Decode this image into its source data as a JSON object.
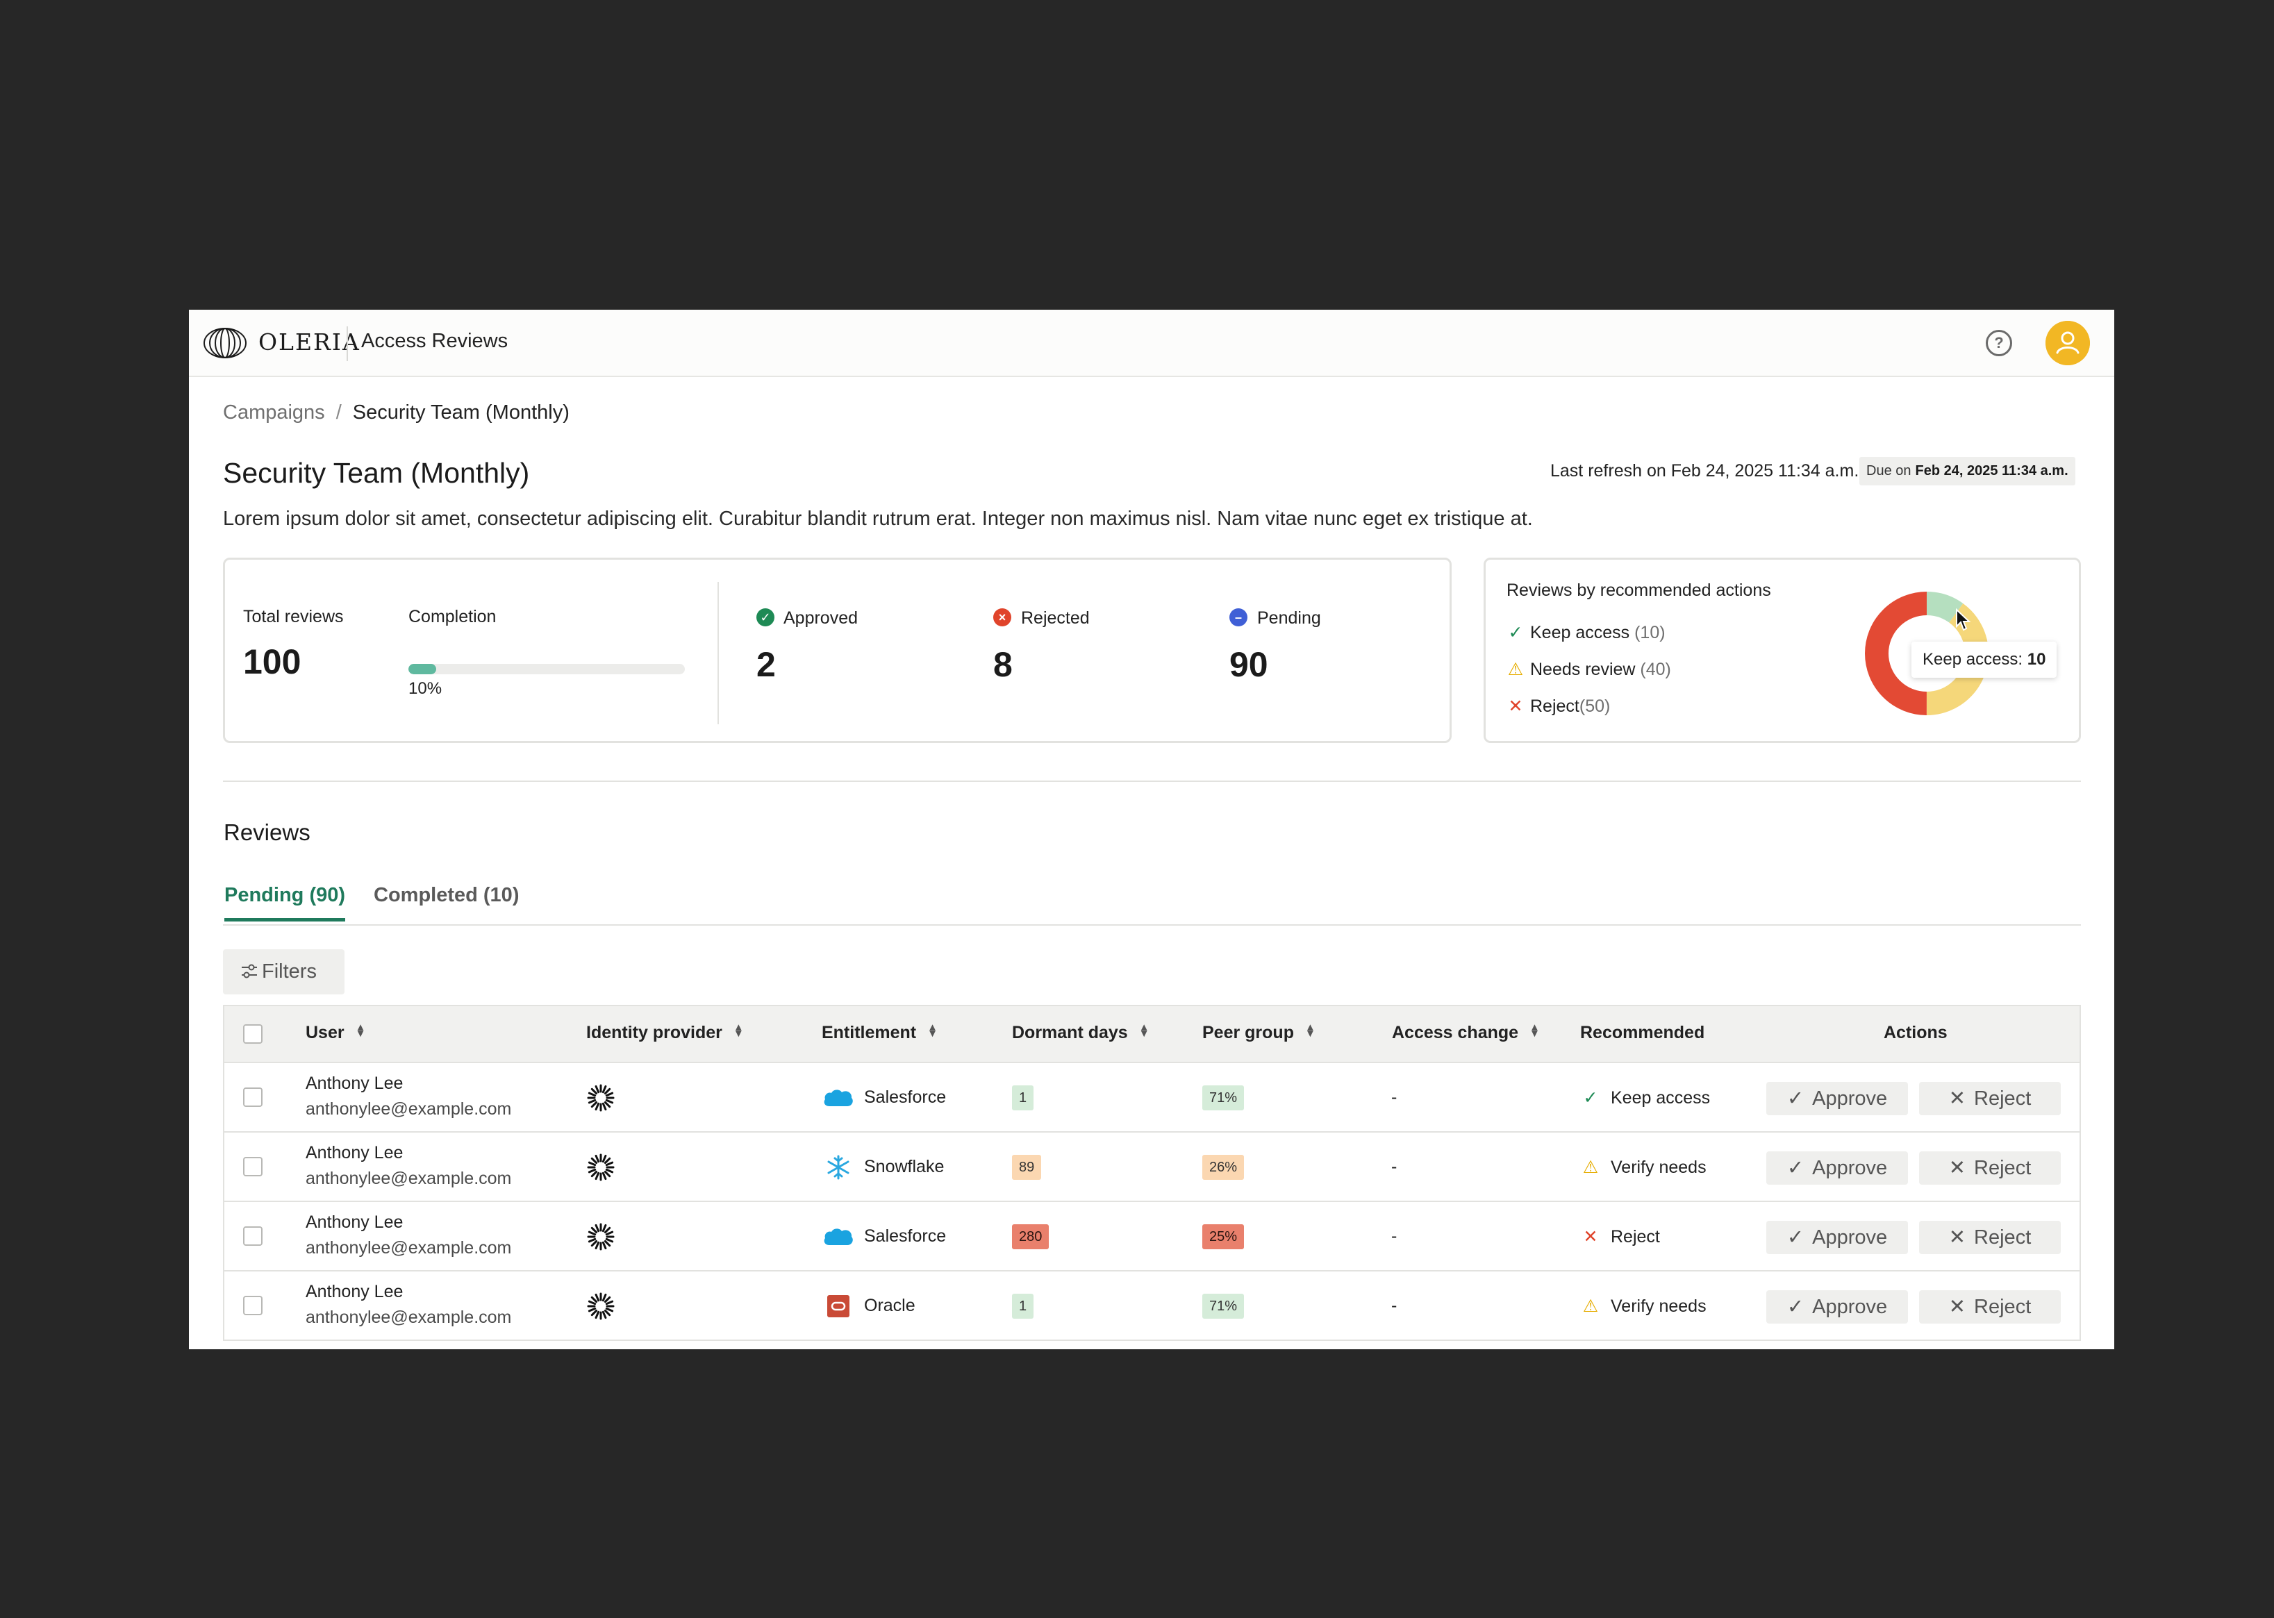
{
  "header": {
    "brand": "OLERIA",
    "app_name": "Access Reviews",
    "help_label": "?"
  },
  "breadcrumb": {
    "parent": "Campaigns",
    "separator": "/",
    "current": "Security Team (Monthly)"
  },
  "page": {
    "title": "Security Team (Monthly)",
    "last_refresh": "Last refresh on Feb 24, 2025 11:34 a.m.",
    "due_label": "Due on",
    "due_value": "Feb 24, 2025 11:34 a.m.",
    "description": "Lorem ipsum dolor sit amet, consectetur adipiscing elit. Curabitur blandit rutrum erat. Integer non maximus nisl. Nam vitae nunc eget ex tristique at."
  },
  "stats": {
    "total_label": "Total reviews",
    "total_value": "100",
    "completion_label": "Completion",
    "completion_fraction": 0.1,
    "completion_text": "10%",
    "approved_label": "Approved",
    "approved_value": "2",
    "rejected_label": "Rejected",
    "rejected_value": "8",
    "pending_label": "Pending",
    "pending_value": "90"
  },
  "recommendations": {
    "title": "Reviews by recommended actions",
    "items": [
      {
        "label": "Keep access",
        "count": "(10)",
        "icon": "check-icon",
        "color": "#1e8a55"
      },
      {
        "label": "Needs review",
        "count": "(40)",
        "icon": "warning-icon",
        "color": "#e6ad00"
      },
      {
        "label": "Reject",
        "count": "(50)",
        "icon": "x-icon",
        "color": "#e0442b"
      }
    ],
    "tooltip_label": "Keep access:",
    "tooltip_value": "10"
  },
  "chart_data": {
    "type": "pie",
    "categories": [
      "Keep access",
      "Needs review",
      "Reject"
    ],
    "values": [
      10,
      40,
      50
    ],
    "colors": [
      "#b5dfbf",
      "#f5d77a",
      "#e34a34"
    ]
  },
  "reviews": {
    "title": "Reviews",
    "tabs": [
      {
        "label": "Pending (90)"
      },
      {
        "label": "Completed (10)"
      }
    ],
    "filters_label": "Filters"
  },
  "table": {
    "columns": {
      "user": "User",
      "identity_provider": "Identity provider",
      "entitlement": "Entitlement",
      "dormant_days": "Dormant days",
      "peer_group": "Peer group",
      "access_change": "Access change",
      "recommended": "Recommended",
      "actions": "Actions"
    },
    "approve_label": "Approve",
    "reject_label": "Reject",
    "rows": [
      {
        "name": "Anthony Lee",
        "email": "anthonylee@example.com",
        "entitlement": "Salesforce",
        "ent_icon": "salesforce-icon",
        "dormant": "1",
        "dormant_level": "green",
        "peer": "71%",
        "peer_level": "green",
        "access_change": "-",
        "recommended": "Keep access",
        "rec_icon": "check-icon"
      },
      {
        "name": "Anthony Lee",
        "email": "anthonylee@example.com",
        "entitlement": "Snowflake",
        "ent_icon": "snowflake-icon",
        "dormant": "89",
        "dormant_level": "orange",
        "peer": "26%",
        "peer_level": "orange",
        "access_change": "-",
        "recommended": "Verify needs",
        "rec_icon": "warning-icon"
      },
      {
        "name": "Anthony Lee",
        "email": "anthonylee@example.com",
        "entitlement": "Salesforce",
        "ent_icon": "salesforce-icon",
        "dormant": "280",
        "dormant_level": "red",
        "peer": "25%",
        "peer_level": "red",
        "access_change": "-",
        "recommended": "Reject",
        "rec_icon": "x-icon"
      },
      {
        "name": "Anthony Lee",
        "email": "anthonylee@example.com",
        "entitlement": "Oracle",
        "ent_icon": "oracle-icon",
        "dormant": "1",
        "dormant_level": "green",
        "peer": "71%",
        "peer_level": "green",
        "access_change": "-",
        "recommended": "Verify needs",
        "rec_icon": "warning-icon"
      }
    ]
  }
}
